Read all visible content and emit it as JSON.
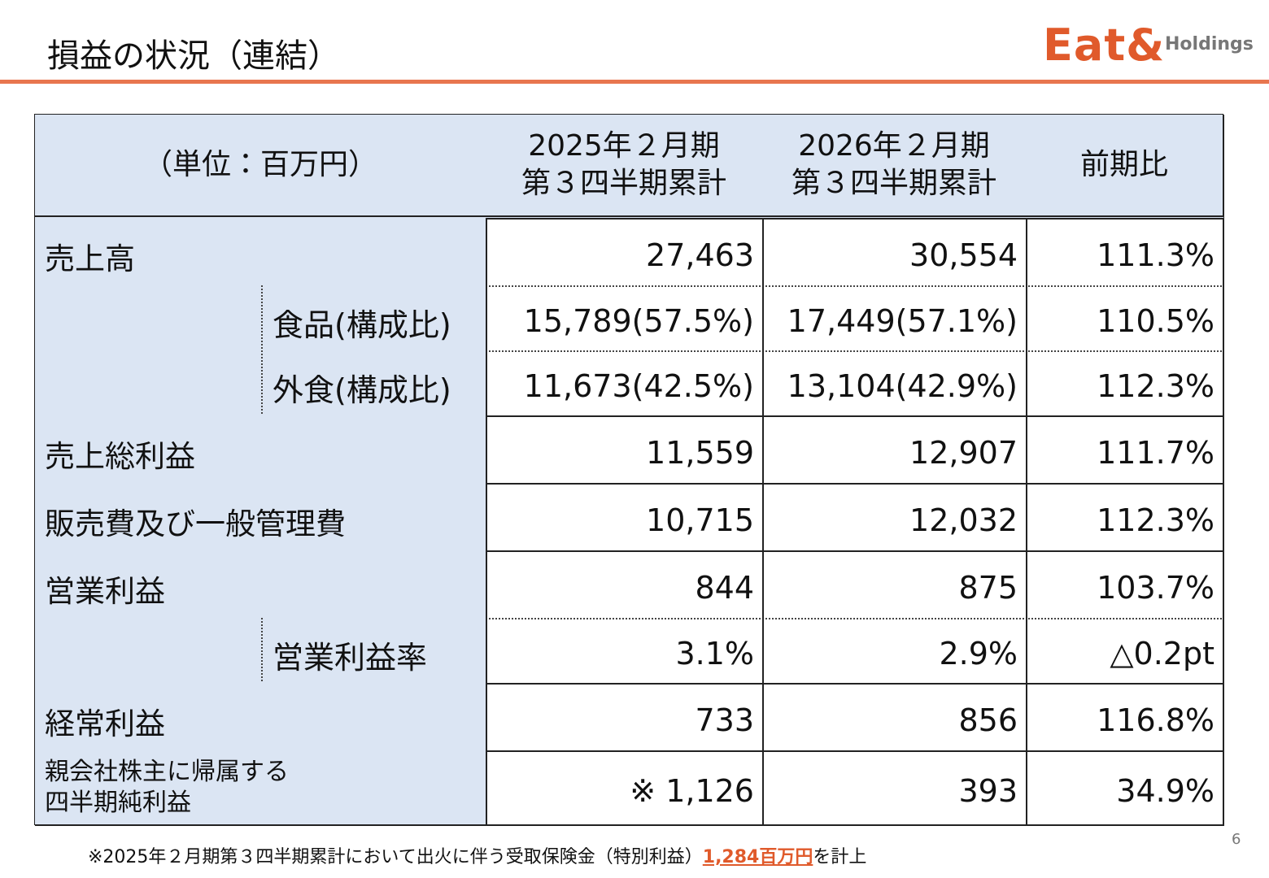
{
  "header": {
    "title": "損益の状況（連結）",
    "logo": "Eat&",
    "logo_sub": "Holdings"
  },
  "table": {
    "columns": [
      [
        "（単位：百万円）"
      ],
      [
        "2025年２月期",
        "第３四半期累計"
      ],
      [
        "2026年２月期",
        "第３四半期累計"
      ],
      [
        "前期比"
      ]
    ],
    "rows": [
      {
        "label": [
          "売上高"
        ],
        "values": [
          "27,463",
          "30,554",
          "111.3%"
        ],
        "subrows": [
          {
            "label": "食品(構成比)",
            "values": [
              "15,789(57.5%)",
              "17,449(57.1%)",
              "110.5%"
            ]
          },
          {
            "label": "外食(構成比)",
            "values": [
              "11,673(42.5%)",
              "13,104(42.9%)",
              "112.3%"
            ]
          }
        ]
      },
      {
        "label": [
          "売上総利益"
        ],
        "values": [
          "11,559",
          "12,907",
          "111.7%"
        ]
      },
      {
        "label": [
          "販売費及び一般管理費"
        ],
        "values": [
          "10,715",
          "12,032",
          "112.3%"
        ]
      },
      {
        "label": [
          "営業利益"
        ],
        "values": [
          "844",
          "875",
          "103.7%"
        ],
        "subrows": [
          {
            "label": "営業利益率",
            "values": [
              "3.1%",
              "2.9%",
              "△0.2pt"
            ]
          }
        ]
      },
      {
        "label": [
          "経常利益"
        ],
        "values": [
          "733",
          "856",
          "116.8%"
        ]
      },
      {
        "label": [
          "親会社株主に帰属する",
          "四半期純利益"
        ],
        "values": [
          "※ 1,126",
          "393",
          "34.9%"
        ]
      }
    ]
  },
  "footnote": {
    "text": "※2025年２月期第３四半期累計において出火に伴う受取保険金（特別利益）",
    "highlight": "1,284百万円",
    "suffix": "を計上"
  },
  "page_number": 6
}
